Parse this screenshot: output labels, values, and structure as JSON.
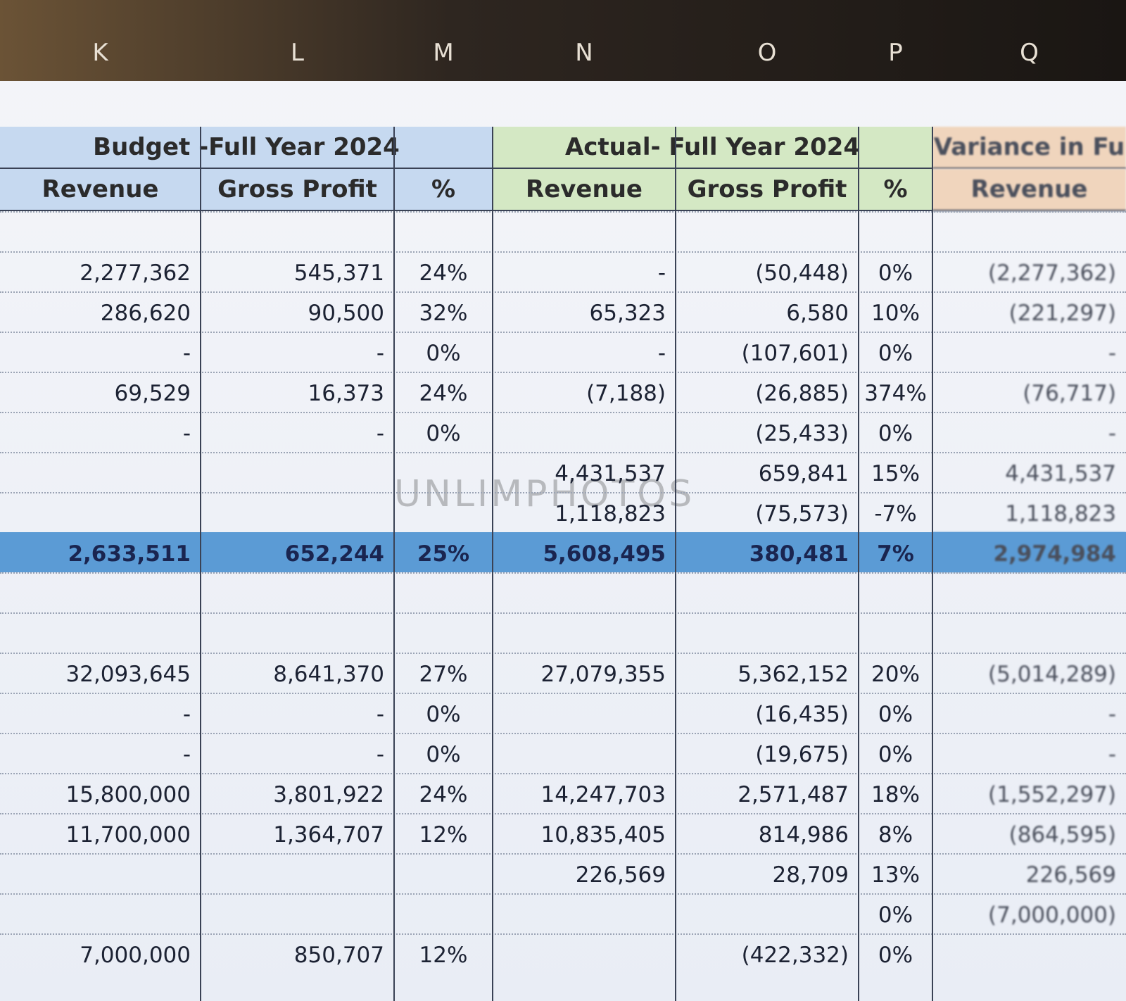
{
  "columns": [
    "K",
    "L",
    "M",
    "N",
    "O",
    "P",
    "Q"
  ],
  "groups": [
    {
      "title": "Budget -Full Year 2024",
      "columns": [
        "Revenue",
        "Gross Profit",
        "%"
      ]
    },
    {
      "title": "Actual- Full Year 2024",
      "columns": [
        "Revenue",
        "Gross Profit",
        "%"
      ]
    },
    {
      "title": "Variance in Fu",
      "columns": [
        "Revenue"
      ]
    }
  ],
  "rows_upper": [
    [
      null,
      null,
      null,
      null,
      null,
      null,
      null
    ],
    [
      "2,277,362",
      "545,371",
      "24%",
      "-",
      "(50,448)",
      "0%",
      "(2,277,362)"
    ],
    [
      "286,620",
      "90,500",
      "32%",
      "65,323",
      "6,580",
      "10%",
      "(221,297)"
    ],
    [
      "-",
      "-",
      "0%",
      "-",
      "(107,601)",
      "0%",
      "-"
    ],
    [
      "69,529",
      "16,373",
      "24%",
      "(7,188)",
      "(26,885)",
      "374%",
      "(76,717)"
    ],
    [
      "-",
      "-",
      "0%",
      null,
      "(25,433)",
      "0%",
      "-"
    ],
    [
      null,
      null,
      null,
      "4,431,537",
      "659,841",
      "15%",
      "4,431,537"
    ],
    [
      null,
      null,
      null,
      "1,118,823",
      "(75,573)",
      "-7%",
      "1,118,823"
    ]
  ],
  "total": [
    "2,633,511",
    "652,244",
    "25%",
    "5,608,495",
    "380,481",
    "7%",
    "2,974,984"
  ],
  "rows_lower": [
    [
      null,
      null,
      null,
      null,
      null,
      null,
      null
    ],
    [
      null,
      null,
      null,
      null,
      null,
      null,
      null
    ],
    [
      "32,093,645",
      "8,641,370",
      "27%",
      "27,079,355",
      "5,362,152",
      "20%",
      "(5,014,289)"
    ],
    [
      "-",
      "-",
      "0%",
      null,
      "(16,435)",
      "0%",
      "-"
    ],
    [
      "-",
      "-",
      "0%",
      null,
      "(19,675)",
      "0%",
      "-"
    ],
    [
      "15,800,000",
      "3,801,922",
      "24%",
      "14,247,703",
      "2,571,487",
      "18%",
      "(1,552,297)"
    ],
    [
      "11,700,000",
      "1,364,707",
      "12%",
      "10,835,405",
      "814,986",
      "8%",
      "(864,595)"
    ],
    [
      null,
      null,
      null,
      "226,569",
      "28,709",
      "13%",
      "226,569"
    ],
    [
      null,
      null,
      null,
      null,
      null,
      "0%",
      "(7,000,000)"
    ],
    [
      "7,000,000",
      "850,707",
      "12%",
      null,
      "(422,332)",
      "0%",
      null
    ]
  ],
  "watermark": "UNLIMPHOTOS"
}
